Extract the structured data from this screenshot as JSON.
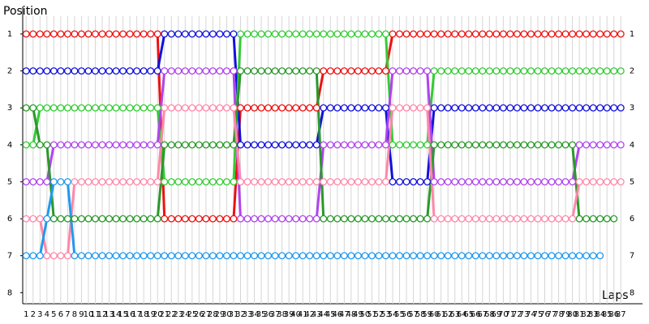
{
  "chart_data": {
    "type": "line",
    "y_label": "Position",
    "x_label": "Laps",
    "x": [
      1,
      2,
      3,
      4,
      5,
      6,
      7,
      8,
      9,
      10,
      11,
      12,
      13,
      14,
      15,
      16,
      17,
      18,
      19,
      20,
      21,
      22,
      23,
      24,
      25,
      26,
      27,
      28,
      29,
      30,
      31,
      32,
      33,
      34,
      35,
      36,
      37,
      38,
      39,
      40,
      41,
      42,
      43,
      44,
      45,
      46,
      47,
      48,
      49,
      50,
      51,
      52,
      53,
      54,
      55,
      56,
      57,
      58,
      59,
      60,
      61,
      62,
      63,
      64,
      65,
      66,
      67,
      68,
      69,
      70,
      71,
      72,
      73,
      74,
      75,
      76,
      77,
      78,
      79,
      80,
      81,
      82,
      83,
      84,
      85,
      86,
      87
    ],
    "xlim": [
      0.5,
      89.9
    ],
    "ylim": [
      8.3,
      0.3
    ],
    "yticks": [
      1,
      2,
      3,
      4,
      5,
      6,
      7,
      8
    ],
    "grid": true,
    "series": [
      {
        "color": "#ee1111",
        "values": [
          1,
          1,
          1,
          1,
          1,
          1,
          1,
          1,
          1,
          1,
          1,
          1,
          1,
          1,
          1,
          1,
          1,
          1,
          1,
          1,
          6,
          6,
          6,
          6,
          6,
          6,
          6,
          6,
          6,
          6,
          6,
          3,
          3,
          3,
          3,
          3,
          3,
          3,
          3,
          3,
          3,
          3,
          3,
          2,
          2,
          2,
          2,
          2,
          2,
          2,
          2,
          2,
          2,
          1,
          1,
          1,
          1,
          1,
          1,
          1,
          1,
          1,
          1,
          1,
          1,
          1,
          1,
          1,
          1,
          1,
          1,
          1,
          1,
          1,
          1,
          1,
          1,
          1,
          1,
          1,
          1,
          1,
          1,
          1,
          1,
          1,
          1
        ]
      },
      {
        "color": "#1111dd",
        "values": [
          2,
          2,
          2,
          2,
          2,
          2,
          2,
          2,
          2,
          2,
          2,
          2,
          2,
          2,
          2,
          2,
          2,
          2,
          2,
          2,
          1,
          1,
          1,
          1,
          1,
          1,
          1,
          1,
          1,
          1,
          1,
          4,
          4,
          4,
          4,
          4,
          4,
          4,
          4,
          4,
          4,
          4,
          4,
          3,
          3,
          3,
          3,
          3,
          3,
          3,
          3,
          3,
          3,
          5,
          5,
          5,
          5,
          5,
          5,
          3,
          3,
          3,
          3,
          3,
          3,
          3,
          3,
          3,
          3,
          3,
          3,
          3,
          3,
          3,
          3,
          3,
          3,
          3,
          3,
          3,
          3,
          3,
          3,
          3,
          3,
          3,
          3
        ]
      },
      {
        "color": "#33cc33",
        "values": [
          4,
          4,
          3,
          3,
          3,
          3,
          3,
          3,
          3,
          3,
          3,
          3,
          3,
          3,
          3,
          3,
          3,
          3,
          3,
          3,
          5,
          5,
          5,
          5,
          5,
          5,
          5,
          5,
          5,
          5,
          5,
          1,
          1,
          1,
          1,
          1,
          1,
          1,
          1,
          1,
          1,
          1,
          1,
          1,
          1,
          1,
          1,
          1,
          1,
          1,
          1,
          1,
          1,
          4,
          4,
          4,
          4,
          4,
          4,
          2,
          2,
          2,
          2,
          2,
          2,
          2,
          2,
          2,
          2,
          2,
          2,
          2,
          2,
          2,
          2,
          2,
          2,
          2,
          2,
          2,
          2,
          2,
          2,
          2,
          2,
          2,
          2
        ]
      },
      {
        "color": "#b044ee",
        "values": [
          5,
          5,
          5,
          5,
          4,
          4,
          4,
          4,
          4,
          4,
          4,
          4,
          4,
          4,
          4,
          4,
          4,
          4,
          4,
          4,
          2,
          2,
          2,
          2,
          2,
          2,
          2,
          2,
          2,
          2,
          2,
          6,
          6,
          6,
          6,
          6,
          6,
          6,
          6,
          6,
          6,
          6,
          6,
          4,
          4,
          4,
          4,
          4,
          4,
          4,
          4,
          4,
          4,
          2,
          2,
          2,
          2,
          2,
          2,
          5,
          5,
          5,
          5,
          5,
          5,
          5,
          5,
          5,
          5,
          5,
          5,
          5,
          5,
          5,
          5,
          5,
          5,
          5,
          5,
          5,
          4,
          4,
          4,
          4,
          4,
          4,
          4
        ]
      },
      {
        "color": "#2a992a",
        "values": [
          3,
          3,
          4,
          4,
          6,
          6,
          6,
          6,
          6,
          6,
          6,
          6,
          6,
          6,
          6,
          6,
          6,
          6,
          6,
          6,
          4,
          4,
          4,
          4,
          4,
          4,
          4,
          4,
          4,
          4,
          4,
          2,
          2,
          2,
          2,
          2,
          2,
          2,
          2,
          2,
          2,
          2,
          2,
          6,
          6,
          6,
          6,
          6,
          6,
          6,
          6,
          6,
          6,
          6,
          6,
          6,
          6,
          6,
          6,
          4,
          4,
          4,
          4,
          4,
          4,
          4,
          4,
          4,
          4,
          4,
          4,
          4,
          4,
          4,
          4,
          4,
          4,
          4,
          4,
          4,
          6,
          6,
          6,
          6,
          6,
          6,
          null
        ]
      },
      {
        "color": "#ff88aa",
        "values": [
          6,
          6,
          6,
          7,
          7,
          7,
          7,
          5,
          5,
          5,
          5,
          5,
          5,
          5,
          5,
          5,
          5,
          5,
          5,
          5,
          3,
          3,
          3,
          3,
          3,
          3,
          3,
          3,
          3,
          3,
          3,
          5,
          5,
          5,
          5,
          5,
          5,
          5,
          5,
          5,
          5,
          5,
          5,
          5,
          5,
          5,
          5,
          5,
          5,
          5,
          5,
          5,
          5,
          3,
          3,
          3,
          3,
          3,
          3,
          6,
          6,
          6,
          6,
          6,
          6,
          6,
          6,
          6,
          6,
          6,
          6,
          6,
          6,
          6,
          6,
          6,
          6,
          6,
          6,
          6,
          5,
          5,
          5,
          5,
          5,
          5,
          5
        ]
      },
      {
        "color": "#2299ee",
        "values": [
          7,
          7,
          7,
          6,
          5,
          5,
          5,
          7,
          7,
          7,
          7,
          7,
          7,
          7,
          7,
          7,
          7,
          7,
          7,
          7,
          7,
          7,
          7,
          7,
          7,
          7,
          7,
          7,
          7,
          7,
          7,
          7,
          7,
          7,
          7,
          7,
          7,
          7,
          7,
          7,
          7,
          7,
          7,
          7,
          7,
          7,
          7,
          7,
          7,
          7,
          7,
          7,
          7,
          7,
          7,
          7,
          7,
          7,
          7,
          7,
          7,
          7,
          7,
          7,
          7,
          7,
          7,
          7,
          7,
          7,
          7,
          7,
          7,
          7,
          7,
          7,
          7,
          7,
          7,
          7,
          7,
          7,
          7,
          7,
          null,
          null,
          null
        ]
      }
    ]
  }
}
